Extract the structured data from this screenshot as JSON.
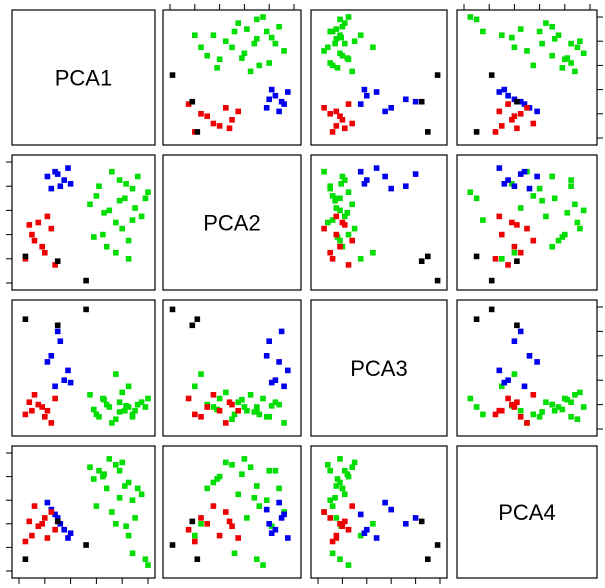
{
  "chart_data": {
    "type": "scatter",
    "variables": [
      "PCA1",
      "PCA2",
      "PCA3",
      "PCA4"
    ],
    "layout": "pairs",
    "range": [
      0,
      1
    ],
    "colors": {
      "green": "#00dd00",
      "blue": "#0000ee",
      "red": "#ee0000",
      "black": "#000000"
    },
    "points": [
      {
        "g": "green",
        "v": [
          0.78,
          0.85,
          0.22,
          0.85
        ]
      },
      {
        "g": "green",
        "v": [
          0.82,
          0.7,
          0.15,
          0.72
        ]
      },
      {
        "g": "green",
        "v": [
          0.7,
          0.6,
          0.18,
          0.95
        ]
      },
      {
        "g": "green",
        "v": [
          0.88,
          0.78,
          0.1,
          0.6
        ]
      },
      {
        "g": "green",
        "v": [
          0.65,
          0.4,
          0.25,
          0.8
        ]
      },
      {
        "g": "green",
        "v": [
          0.92,
          0.88,
          0.2,
          0.7
        ]
      },
      {
        "g": "green",
        "v": [
          0.75,
          0.5,
          0.08,
          0.9
        ]
      },
      {
        "g": "green",
        "v": [
          0.6,
          0.72,
          0.12,
          0.55
        ]
      },
      {
        "g": "green",
        "v": [
          0.85,
          0.35,
          0.18,
          0.75
        ]
      },
      {
        "g": "green",
        "v": [
          0.55,
          0.65,
          0.28,
          0.88
        ]
      },
      {
        "g": "green",
        "v": [
          0.95,
          0.55,
          0.22,
          0.65
        ]
      },
      {
        "g": "green",
        "v": [
          0.72,
          0.92,
          0.05,
          0.5
        ]
      },
      {
        "g": "green",
        "v": [
          0.8,
          0.45,
          0.3,
          0.92
        ]
      },
      {
        "g": "green",
        "v": [
          0.68,
          0.3,
          0.2,
          0.7
        ]
      },
      {
        "g": "green",
        "v": [
          0.9,
          0.62,
          0.15,
          0.45
        ]
      },
      {
        "g": "green",
        "v": [
          0.62,
          0.8,
          0.1,
          0.85
        ]
      },
      {
        "g": "green",
        "v": [
          0.98,
          0.7,
          0.18,
          0.1
        ]
      },
      {
        "g": "green",
        "v": [
          1.0,
          0.75,
          0.25,
          0.05
        ]
      },
      {
        "g": "green",
        "v": [
          0.75,
          0.25,
          0.45,
          0.4
        ]
      },
      {
        "g": "green",
        "v": [
          0.85,
          0.2,
          0.35,
          0.3
        ]
      },
      {
        "g": "green",
        "v": [
          0.58,
          0.38,
          0.16,
          0.78
        ]
      },
      {
        "g": "green",
        "v": [
          0.88,
          0.52,
          0.12,
          0.15
        ]
      },
      {
        "g": "green",
        "v": [
          0.66,
          0.58,
          0.24,
          0.82
        ]
      },
      {
        "g": "green",
        "v": [
          0.78,
          0.68,
          0.14,
          0.62
        ]
      },
      {
        "g": "green",
        "v": [
          0.83,
          0.82,
          0.19,
          0.38
        ]
      },
      {
        "g": "blue",
        "v": [
          0.28,
          0.92,
          0.35,
          0.48
        ]
      },
      {
        "g": "blue",
        "v": [
          0.35,
          0.85,
          0.4,
          0.35
        ]
      },
      {
        "g": "blue",
        "v": [
          0.25,
          0.78,
          0.6,
          0.52
        ]
      },
      {
        "g": "blue",
        "v": [
          0.38,
          0.95,
          0.48,
          0.28
        ]
      },
      {
        "g": "blue",
        "v": [
          0.32,
          0.8,
          0.72,
          0.4
        ]
      },
      {
        "g": "blue",
        "v": [
          0.22,
          0.88,
          0.55,
          0.58
        ]
      },
      {
        "g": "blue",
        "v": [
          0.4,
          0.82,
          0.38,
          0.32
        ]
      },
      {
        "g": "blue",
        "v": [
          0.3,
          0.9,
          0.8,
          0.45
        ]
      },
      {
        "g": "red",
        "v": [
          0.1,
          0.4,
          0.15,
          0.3
        ]
      },
      {
        "g": "red",
        "v": [
          0.2,
          0.25,
          0.1,
          0.45
        ]
      },
      {
        "g": "red",
        "v": [
          0.15,
          0.5,
          0.2,
          0.38
        ]
      },
      {
        "g": "red",
        "v": [
          0.25,
          0.45,
          0.05,
          0.5
        ]
      },
      {
        "g": "red",
        "v": [
          0.05,
          0.2,
          0.12,
          0.25
        ]
      },
      {
        "g": "red",
        "v": [
          0.18,
          0.3,
          0.18,
          0.4
        ]
      },
      {
        "g": "red",
        "v": [
          0.28,
          0.15,
          0.25,
          0.35
        ]
      },
      {
        "g": "red",
        "v": [
          0.12,
          0.35,
          0.28,
          0.55
        ]
      },
      {
        "g": "red",
        "v": [
          0.22,
          0.55,
          0.15,
          0.28
        ]
      },
      {
        "g": "red",
        "v": [
          0.08,
          0.48,
          0.22,
          0.42
        ]
      },
      {
        "g": "black",
        "v": [
          0.3,
          0.18,
          0.85,
          0.42
        ]
      },
      {
        "g": "black",
        "v": [
          0.52,
          0.02,
          0.98,
          0.22
        ]
      },
      {
        "g": "black",
        "v": [
          0.05,
          0.22,
          0.9,
          0.1
        ]
      }
    ]
  }
}
